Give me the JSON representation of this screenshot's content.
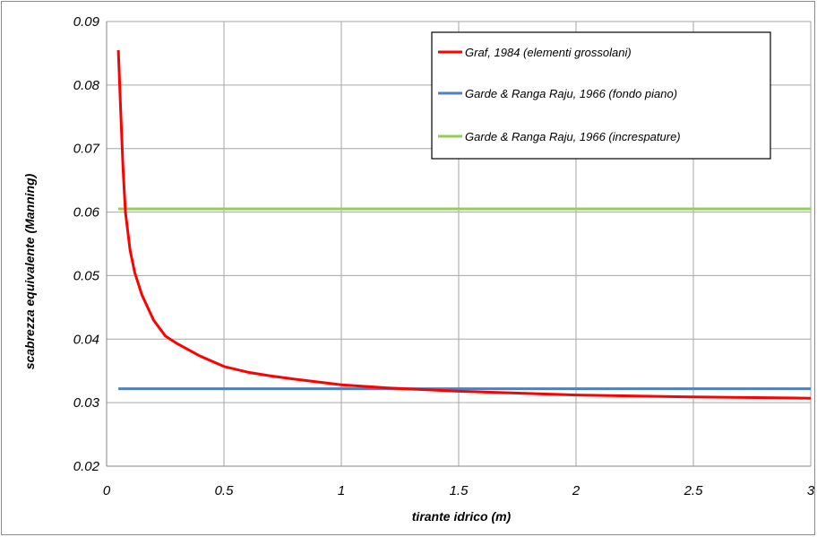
{
  "chart_data": {
    "type": "line",
    "xlabel": "tirante idrico (m)",
    "ylabel": "scabrezza equivalente  (Manning)",
    "xlim": [
      0,
      3
    ],
    "ylim": [
      0.02,
      0.09
    ],
    "x_ticks": [
      "0",
      "0.5",
      "1",
      "1.5",
      "2",
      "2.5",
      "3"
    ],
    "y_ticks": [
      "0.02",
      "0.03",
      "0.04",
      "0.05",
      "0.06",
      "0.07",
      "0.08",
      "0.09"
    ],
    "grid": true,
    "legend_position": "top-right",
    "series": [
      {
        "name": "Graf, 1984 (elementi grossolani)",
        "color": "#ff0000",
        "x": [
          0.05,
          0.06,
          0.07,
          0.08,
          0.1,
          0.12,
          0.15,
          0.2,
          0.25,
          0.3,
          0.4,
          0.5,
          0.6,
          0.7,
          0.8,
          1.0,
          1.2,
          1.5,
          2.0,
          2.5,
          3.0
        ],
        "y": [
          0.0855,
          0.076,
          0.067,
          0.06,
          0.054,
          0.0505,
          0.047,
          0.043,
          0.0405,
          0.0393,
          0.0373,
          0.0357,
          0.0348,
          0.0342,
          0.0337,
          0.0328,
          0.0323,
          0.0318,
          0.0312,
          0.0309,
          0.0307
        ]
      },
      {
        "name": "Garde & Ranga Raju, 1966 (fondo piano)",
        "color": "#4f81bd",
        "x": [
          0.05,
          3.0
        ],
        "y": [
          0.0322,
          0.0322
        ]
      },
      {
        "name": "Garde & Ranga Raju, 1966 (increspature)",
        "color": "#92d050",
        "x": [
          0.05,
          3.0
        ],
        "y": [
          0.0605,
          0.0605
        ]
      }
    ]
  }
}
